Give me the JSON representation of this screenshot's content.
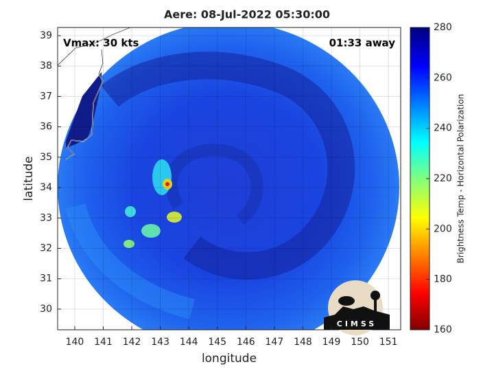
{
  "chart_data": {
    "type": "map",
    "title": "Aere: 08-Jul-2022 05:30:00",
    "xlabel": "longitude",
    "ylabel": "latitude",
    "annotations": [
      "Vmax: 30 kts",
      "01:33 away"
    ],
    "logo": "CIMSS",
    "xlim": [
      139.4,
      151.43
    ],
    "ylim": [
      29.32,
      39.27
    ],
    "xticks": [
      140,
      141,
      142,
      143,
      144,
      145,
      146,
      147,
      148,
      149,
      150,
      151
    ],
    "yticks": [
      30,
      31,
      32,
      33,
      34,
      35,
      36,
      37,
      38,
      39
    ],
    "grid": true,
    "colorbar": {
      "label": "Brightness Temp - Horizontal Polarization",
      "lim": [
        160,
        280
      ],
      "ticks": [
        160,
        180,
        200,
        220,
        240,
        260,
        280
      ],
      "colormap": "jet"
    }
  }
}
